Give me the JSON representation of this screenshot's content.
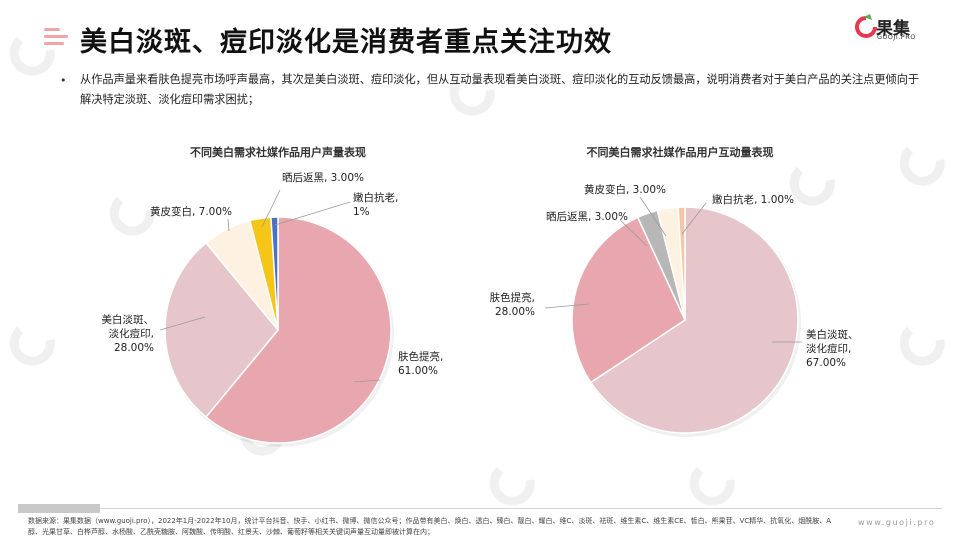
{
  "header": {
    "title": "美白淡斑、痘印淡化是消费者重点关注功效",
    "logo_text": "果集",
    "logo_sub": "GUOJI.PRO"
  },
  "body": {
    "bullet": "•",
    "description": "从作品声量来看肤色提亮市场呼声最高，其次是美白淡斑、痘印淡化，但从互动量表现看美白淡斑、痘印淡化的互动反馈最高，说明消费者对于美白产品的关注点更倾向于解决特定淡斑、淡化痘印需求困扰；"
  },
  "chart_data": [
    {
      "type": "pie",
      "title": "不同美白需求社媒作品用户声量表现",
      "slices": [
        {
          "label": "肤色提亮",
          "value": 61.0,
          "label_text": [
            "肤色提亮,",
            "61.00%"
          ],
          "color": "#e8a7ae"
        },
        {
          "label": "美白淡斑、淡化痘印",
          "value": 28.0,
          "label_text": [
            "美白淡斑、",
            "淡化痘印,",
            "28.00%"
          ],
          "color": "#e6c6cb"
        },
        {
          "label": "黄皮变白",
          "value": 7.0,
          "label_text": [
            "黄皮变白, 7.00%"
          ],
          "color": "#fdf1e2"
        },
        {
          "label": "晒后返黑",
          "value": 3.0,
          "label_text": [
            "晒后返黑, 3.00%"
          ],
          "color": "#f5c518"
        },
        {
          "label": "嫩白抗老",
          "value": 1.0,
          "label_text": [
            "嫩白抗老,",
            "1%"
          ],
          "color": "#4a72c4"
        }
      ]
    },
    {
      "type": "pie",
      "title": "不同美白需求社媒作品用户互动量表现",
      "slices": [
        {
          "label": "美白淡斑、淡化痘印",
          "value": 67.0,
          "label_text": [
            "美白淡斑、",
            "淡化痘印,",
            "67.00%"
          ],
          "color": "#e6c6cb"
        },
        {
          "label": "肤色提亮",
          "value": 28.0,
          "label_text": [
            "肤色提亮,",
            "28.00%"
          ],
          "color": "#e8a7ae"
        },
        {
          "label": "晒后返黑",
          "value": 3.0,
          "label_text": [
            "晒后返黑, 3.00%"
          ],
          "color": "#b7b7b7"
        },
        {
          "label": "黄皮变白",
          "value": 3.0,
          "label_text": [
            "黄皮变白, 3.00%"
          ],
          "color": "#fdf1e2"
        },
        {
          "label": "嫩白抗老",
          "value": 1.0,
          "label_text": [
            "嫩白抗老, 1.00%"
          ],
          "color": "#f4c6a6"
        }
      ]
    }
  ],
  "footer": {
    "note": "数据来源：果集数据（www.guoji.pro），2022年1月-2022年10月，统计平台抖音、快手、小红书、微博、微信公众号；作品带有美白、焕白、透白、臻白、靓白、耀白、维C、淡斑、祛斑、维生素C、维生素CE、皙白、熊果苷、VC精华、抗氧化、烟酰胺、A醇、光果甘草、白桦芦醇、水杨酸、乙酰壳糖胺、阿魏酸、传明酸、红景天、沙棘、葡萄籽等相关关键词声量互动量即被计算在内；",
    "site": "www.guoji.pro"
  }
}
